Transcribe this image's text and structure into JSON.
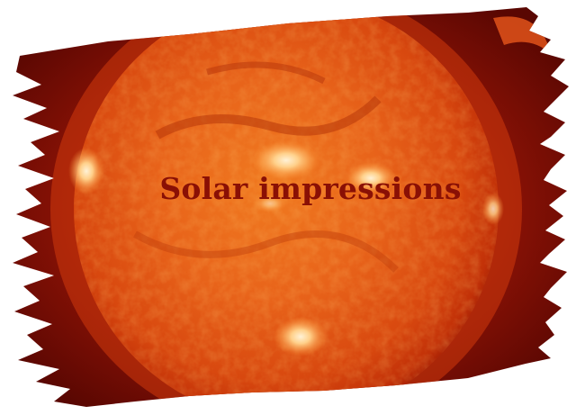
{
  "title": "Solar impressions",
  "colors": {
    "deep_red": "#8a0d03",
    "solar_orange": "#e85a10",
    "hot_core": "#ff9a3a",
    "flare_white": "#ffe9c0",
    "title_text": "#8a1005"
  },
  "icons": [
    "sun-image",
    "brush-stroke-mask"
  ]
}
